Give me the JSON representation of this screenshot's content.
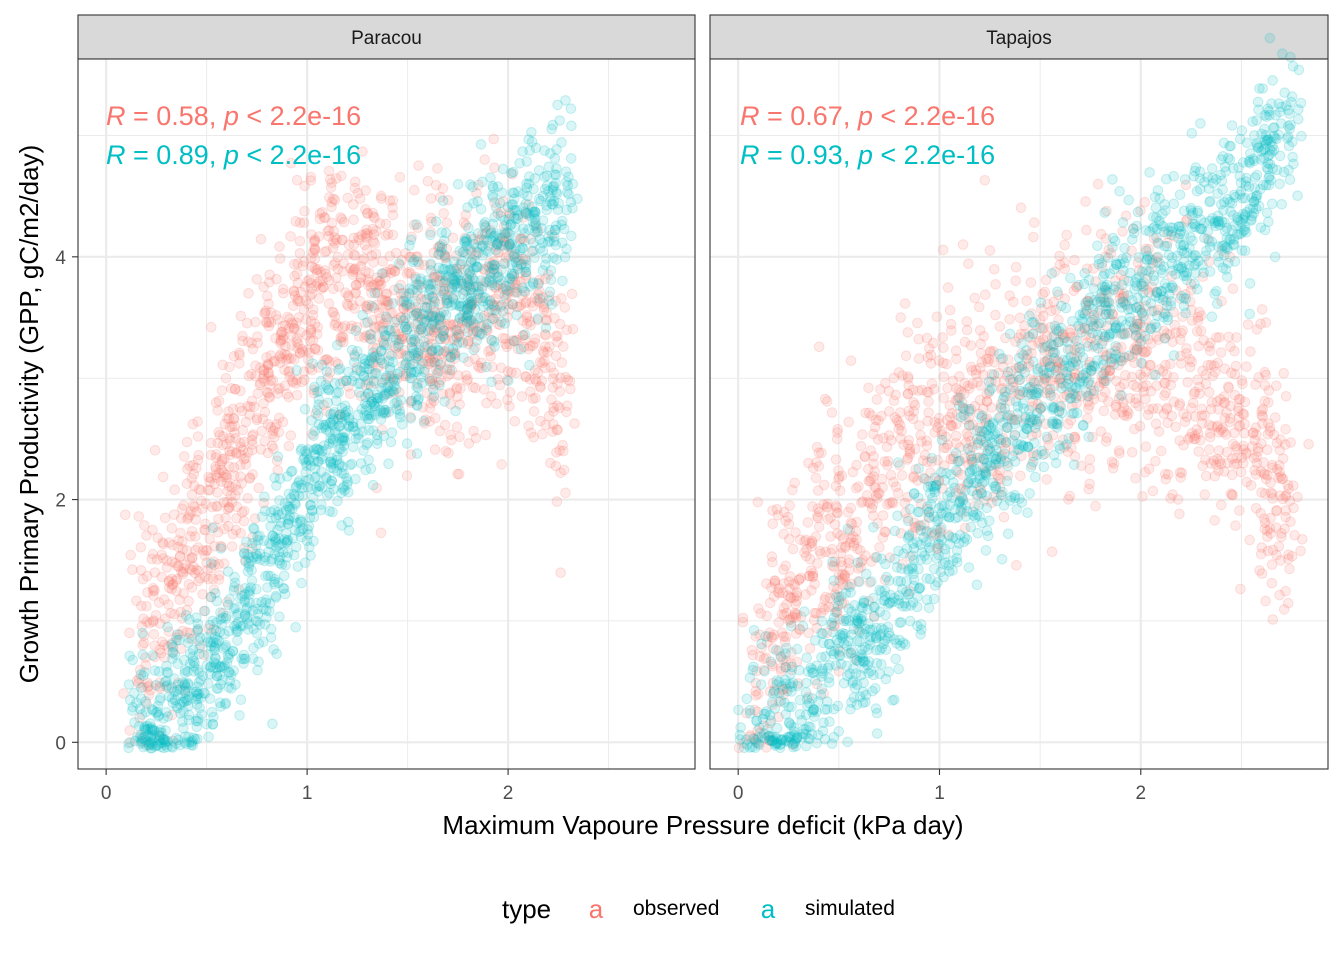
{
  "chart_data": {
    "type": "scatter",
    "xlabel": "Maximum Vapoure Pressure deficit (kPa day)",
    "ylabel": "Growth Primary Productivity (GPP, gC/m2/day)",
    "xlim": [
      -0.14,
      2.93
    ],
    "ylim": [
      -0.22,
      5.63
    ],
    "x_ticks": [
      "0",
      "1",
      "2"
    ],
    "y_ticks": [
      "0",
      "2",
      "4"
    ],
    "grid": true,
    "legend": {
      "title": "type",
      "placement": "bottom",
      "key_glyph": "a",
      "entries": [
        {
          "label": "observed",
          "color": "#F8766D"
        },
        {
          "label": "simulated",
          "color": "#00BFC4"
        }
      ]
    },
    "panels": [
      {
        "strip": "Paracou",
        "annotations": [
          {
            "r_symbol": "R",
            "r_text": " = 0.58, ",
            "p_symbol": "p",
            "p_text": " < 2.2e-16",
            "color": "#F8766D"
          },
          {
            "r_symbol": "R",
            "r_text": " = 0.89, ",
            "p_symbol": "p",
            "p_text": " < 2.2e-16",
            "color": "#00BFC4"
          }
        ],
        "series": [
          {
            "name": "observed",
            "color": "#F8766D",
            "alpha": 0.15,
            "x": [
              0.15,
              0.2,
              0.25,
              0.3,
              0.35,
              0.4,
              0.45,
              0.5,
              0.55,
              0.6,
              0.65,
              0.7,
              0.75,
              0.8,
              0.85,
              0.9,
              0.95,
              1.0,
              1.05,
              1.1,
              1.15,
              1.2,
              1.25,
              1.3,
              1.35,
              1.4,
              1.45,
              1.5,
              1.55,
              1.6,
              1.65,
              1.7,
              1.75,
              1.8,
              1.85,
              1.9,
              1.95,
              2.0,
              2.05,
              2.1,
              2.15,
              2.2,
              2.28
            ],
            "y": [
              0.8,
              0.9,
              1.0,
              1.2,
              1.3,
              1.5,
              1.7,
              1.8,
              2.0,
              2.2,
              2.4,
              2.6,
              2.8,
              3.0,
              3.2,
              3.3,
              3.5,
              3.6,
              3.7,
              3.8,
              3.8,
              3.8,
              3.7,
              3.7,
              3.6,
              3.6,
              3.5,
              3.5,
              3.4,
              3.4,
              3.4,
              3.5,
              3.5,
              3.5,
              3.6,
              3.6,
              3.6,
              3.6,
              3.5,
              3.4,
              3.3,
              3.1,
              2.9
            ]
          },
          {
            "name": "simulated",
            "color": "#00BFC4",
            "alpha": 0.15,
            "x": [
              0.15,
              0.2,
              0.25,
              0.3,
              0.35,
              0.4,
              0.45,
              0.5,
              0.55,
              0.6,
              0.65,
              0.7,
              0.75,
              0.8,
              0.85,
              0.9,
              0.95,
              1.0,
              1.05,
              1.1,
              1.15,
              1.2,
              1.25,
              1.3,
              1.35,
              1.4,
              1.45,
              1.5,
              1.55,
              1.6,
              1.65,
              1.7,
              1.75,
              1.8,
              1.85,
              1.9,
              1.95,
              2.0,
              2.05,
              2.1,
              2.15,
              2.2,
              2.3
            ],
            "y": [
              0.05,
              0.08,
              0.12,
              0.2,
              0.3,
              0.4,
              0.5,
              0.6,
              0.7,
              0.8,
              0.95,
              1.1,
              1.3,
              1.4,
              1.6,
              1.8,
              2.0,
              2.1,
              2.3,
              2.4,
              2.5,
              2.6,
              2.7,
              2.8,
              2.9,
              3.0,
              3.1,
              3.2,
              3.3,
              3.4,
              3.5,
              3.6,
              3.7,
              3.8,
              3.9,
              4.0,
              4.0,
              4.1,
              4.1,
              4.2,
              4.2,
              4.3,
              4.6
            ]
          }
        ]
      },
      {
        "strip": "Tapajos",
        "annotations": [
          {
            "r_symbol": "R",
            "r_text": " = 0.67, ",
            "p_symbol": "p",
            "p_text": " < 2.2e-16",
            "color": "#F8766D"
          },
          {
            "r_symbol": "R",
            "r_text": " = 0.93, ",
            "p_symbol": "p",
            "p_text": " < 2.2e-16",
            "color": "#00BFC4"
          }
        ],
        "series": [
          {
            "name": "observed",
            "color": "#F8766D",
            "alpha": 0.15,
            "x": [
              0.05,
              0.1,
              0.15,
              0.2,
              0.25,
              0.3,
              0.35,
              0.4,
              0.45,
              0.5,
              0.55,
              0.6,
              0.65,
              0.7,
              0.75,
              0.8,
              0.85,
              0.9,
              0.95,
              1.0,
              1.05,
              1.1,
              1.15,
              1.2,
              1.25,
              1.3,
              1.35,
              1.4,
              1.45,
              1.5,
              1.55,
              1.6,
              1.65,
              1.7,
              1.75,
              1.8,
              1.85,
              1.9,
              1.95,
              2.0,
              2.1,
              2.2,
              2.3,
              2.4,
              2.5,
              2.6,
              2.75
            ],
            "y": [
              0.3,
              0.5,
              0.8,
              1.0,
              1.2,
              1.3,
              1.5,
              1.6,
              1.7,
              1.8,
              1.9,
              2.0,
              2.1,
              2.2,
              2.3,
              2.4,
              2.45,
              2.5,
              2.55,
              2.6,
              2.65,
              2.7,
              2.75,
              2.8,
              2.85,
              2.9,
              2.9,
              2.95,
              3.0,
              3.0,
              3.05,
              3.1,
              3.1,
              3.1,
              3.15,
              3.2,
              3.2,
              3.2,
              3.2,
              3.2,
              3.1,
              3.0,
              2.9,
              2.8,
              2.6,
              2.3,
              2.0
            ]
          },
          {
            "name": "simulated",
            "color": "#00BFC4",
            "alpha": 0.15,
            "x": [
              0.05,
              0.1,
              0.15,
              0.2,
              0.25,
              0.3,
              0.35,
              0.4,
              0.45,
              0.5,
              0.55,
              0.6,
              0.65,
              0.7,
              0.75,
              0.8,
              0.85,
              0.9,
              0.95,
              1.0,
              1.05,
              1.1,
              1.15,
              1.2,
              1.25,
              1.3,
              1.35,
              1.4,
              1.45,
              1.5,
              1.55,
              1.6,
              1.65,
              1.7,
              1.75,
              1.8,
              1.85,
              1.9,
              1.95,
              2.0,
              2.1,
              2.2,
              2.3,
              2.4,
              2.5,
              2.6,
              2.75
            ],
            "y": [
              0.05,
              0.05,
              0.08,
              0.1,
              0.15,
              0.2,
              0.3,
              0.5,
              0.6,
              0.7,
              0.8,
              0.85,
              0.9,
              1.0,
              1.1,
              1.2,
              1.3,
              1.5,
              1.7,
              1.8,
              1.9,
              2.0,
              2.1,
              2.2,
              2.3,
              2.4,
              2.5,
              2.6,
              2.7,
              2.8,
              2.9,
              3.0,
              3.1,
              3.2,
              3.3,
              3.4,
              3.5,
              3.6,
              3.7,
              3.8,
              3.9,
              4.0,
              4.2,
              4.3,
              4.5,
              4.8,
              5.0
            ]
          }
        ]
      }
    ]
  }
}
